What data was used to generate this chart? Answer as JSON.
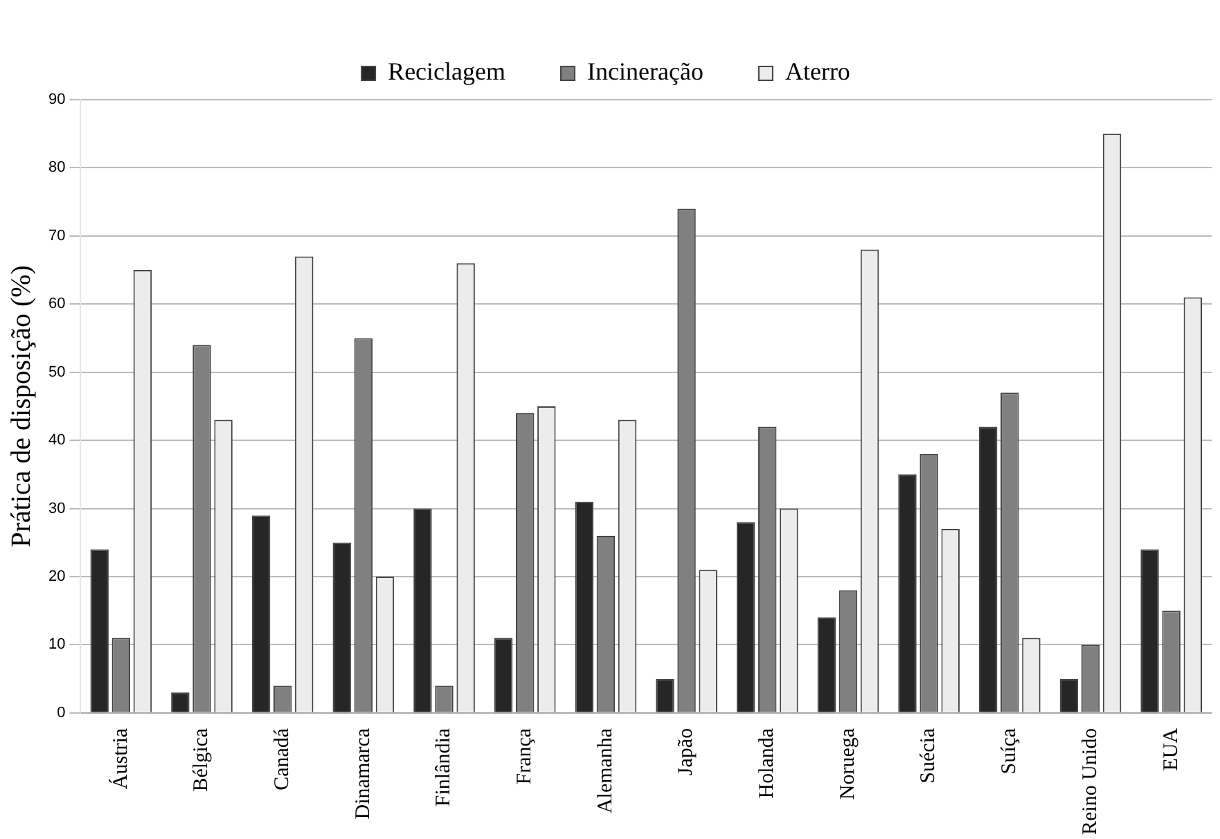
{
  "chart_data": {
    "type": "bar",
    "ylabel": "Prática de disposição (%)",
    "categories": [
      "Áustria",
      "Bélgica",
      "Canadá",
      "Dinamarca",
      "Finlândia",
      "França",
      "Alemanha",
      "Japão",
      "Holanda",
      "Noruega",
      "Suécia",
      "Suíça",
      "Reino Unido",
      "EUA"
    ],
    "series": [
      {
        "name": "Reciclagem",
        "color": "#262626",
        "values": [
          24,
          3,
          29,
          25,
          30,
          11,
          31,
          5,
          28,
          14,
          35,
          42,
          5,
          24
        ]
      },
      {
        "name": "Incineração",
        "color": "#808080",
        "values": [
          11,
          54,
          4,
          55,
          4,
          44,
          26,
          74,
          42,
          18,
          38,
          47,
          10,
          15
        ]
      },
      {
        "name": "Aterro",
        "color": "#ececec",
        "values": [
          65,
          43,
          67,
          20,
          66,
          45,
          43,
          21,
          30,
          68,
          27,
          11,
          85,
          61
        ]
      }
    ],
    "ylim": [
      0,
      90
    ],
    "yticks": [
      0,
      10,
      20,
      30,
      40,
      50,
      60,
      70,
      80,
      90
    ],
    "grid": "y",
    "legend": "top"
  }
}
